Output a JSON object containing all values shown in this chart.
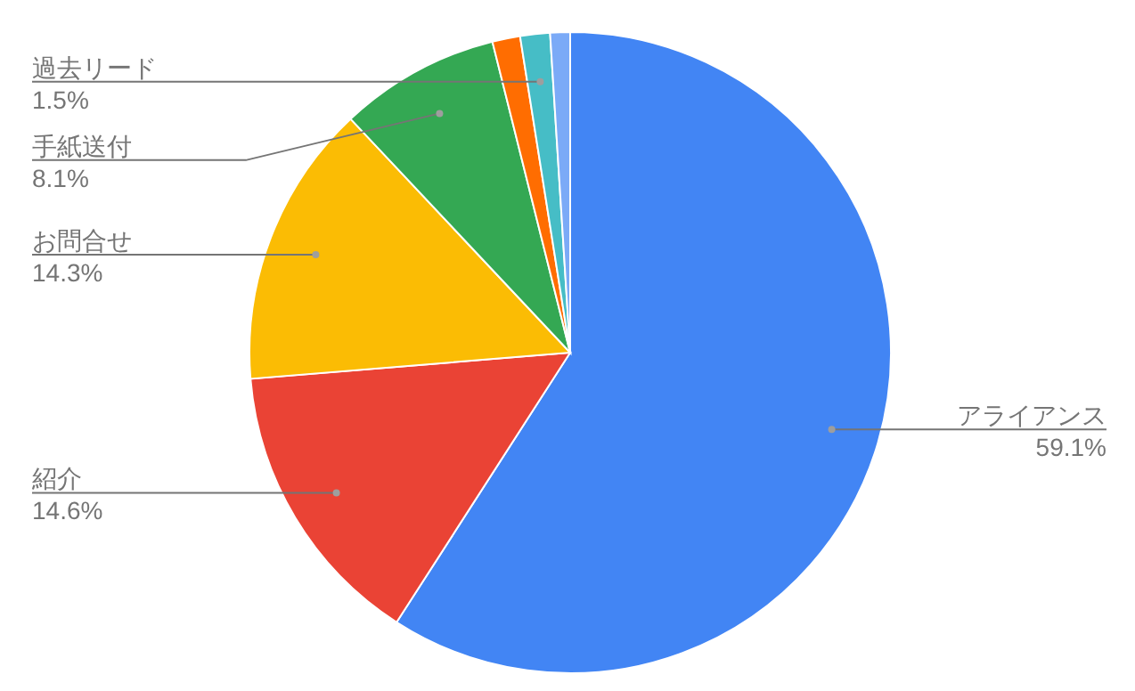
{
  "chart_data": {
    "type": "pie",
    "categories": [
      "アライアンス",
      "紹介",
      "お問合せ",
      "手紙送付",
      null,
      "過去リード",
      null
    ],
    "values": [
      59.1,
      14.6,
      14.3,
      8.1,
      1.4,
      1.5,
      1.0
    ],
    "colors": [
      "#4285f4",
      "#ea4335",
      "#fbbc04",
      "#34a853",
      "#ff6d01",
      "#46bdc6",
      "#7baaf7"
    ],
    "value_labels": [
      "59.1%",
      "14.6%",
      "14.3%",
      "8.1%",
      null,
      "1.5%",
      null
    ]
  }
}
